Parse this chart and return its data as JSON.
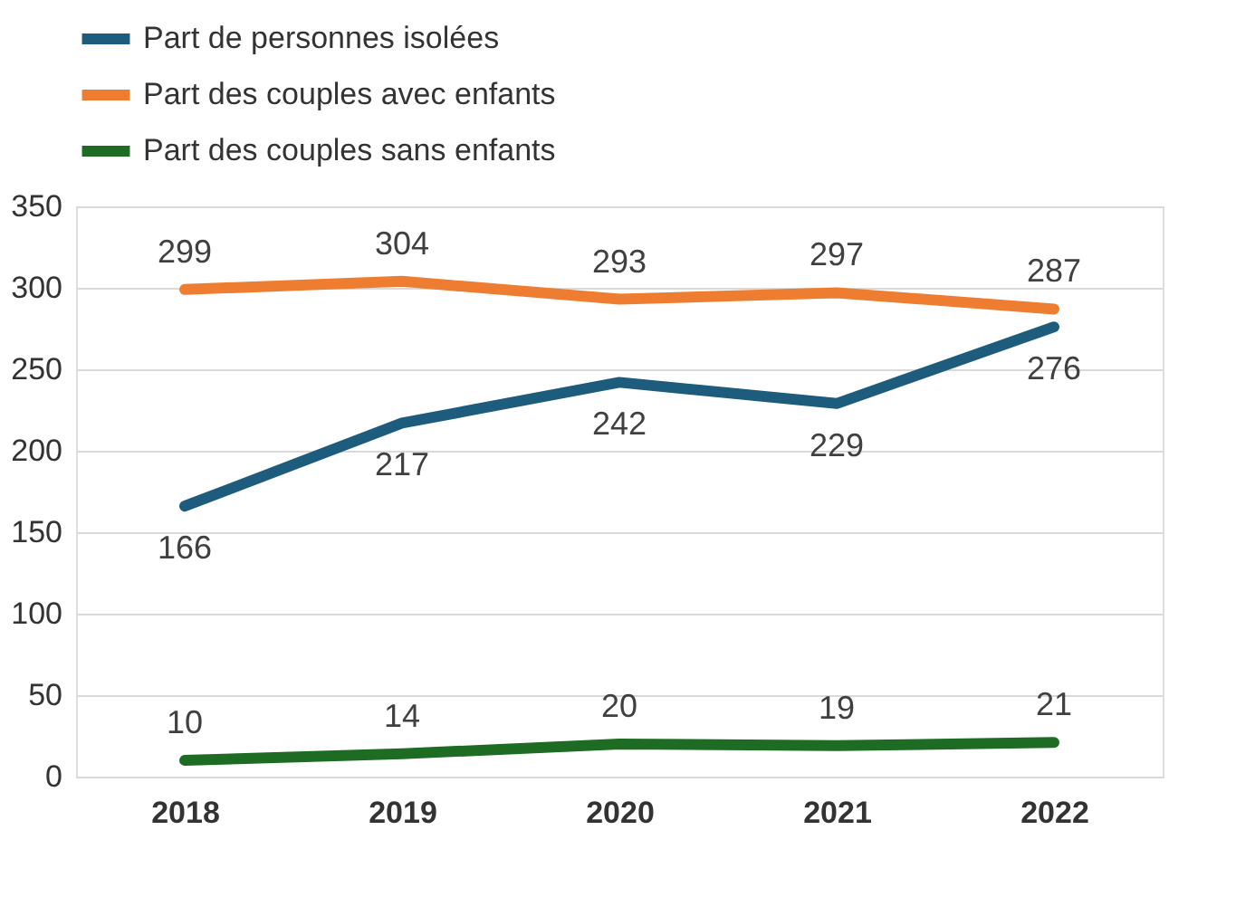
{
  "chart_data": {
    "type": "line",
    "categories": [
      "2018",
      "2019",
      "2020",
      "2021",
      "2022"
    ],
    "series": [
      {
        "name": "Part de personnes isolées",
        "color": "#1d5c7c",
        "values": [
          166,
          217,
          242,
          229,
          276
        ]
      },
      {
        "name": "Part des couples avec enfants",
        "color": "#ee7d31",
        "values": [
          299,
          304,
          293,
          297,
          287
        ]
      },
      {
        "name": "Part des couples sans enfants",
        "color": "#1e6b24",
        "values": [
          10,
          14,
          20,
          19,
          21
        ]
      }
    ],
    "ylim": [
      0,
      350
    ],
    "yticks": [
      0,
      50,
      100,
      150,
      200,
      250,
      300,
      350
    ],
    "grid": "y",
    "legend": "top",
    "data_labels": true,
    "marker": "none"
  }
}
